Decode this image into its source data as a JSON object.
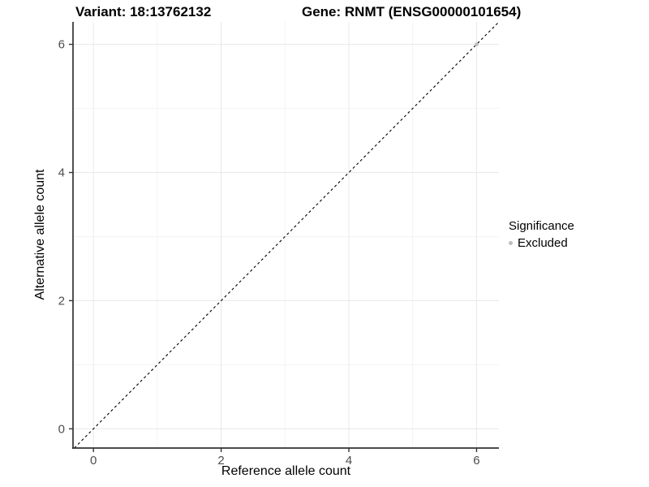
{
  "figure": {
    "titles": {
      "variant": "Variant: 18:13762132",
      "gene": "Gene: RNMT (ENSG00000101654)"
    }
  },
  "legend": {
    "title": "Significance",
    "items": [
      {
        "label": "Excluded",
        "marker_color": "#bebebe"
      }
    ]
  },
  "chart_data": {
    "type": "scatter",
    "title": "Variant: 18:13762132 — Gene: RNMT (ENSG00000101654)",
    "xlabel": "Reference allele count",
    "ylabel": "Alternative allele count",
    "xlim": [
      -0.32,
      6.35
    ],
    "ylim": [
      -0.3,
      6.35
    ],
    "xticks": [
      0,
      2,
      4,
      6
    ],
    "yticks": [
      0,
      2,
      4,
      6
    ],
    "x_minor_ticks": [
      1,
      3,
      5
    ],
    "y_minor_ticks": [
      1,
      3,
      5
    ],
    "grid": true,
    "legend_position": "right",
    "series": [
      {
        "name": "Excluded",
        "color": "#bebebe",
        "points": [
          [
            6,
            6
          ]
        ]
      }
    ],
    "reference_line": {
      "kind": "identity y=x",
      "style": "dashed",
      "color": "#000000"
    }
  },
  "colors": {
    "background": "#ffffff",
    "grid_major": "#e8e8e8",
    "grid_minor": "#f3f3f3",
    "axis_line": "#333333",
    "tick_mark": "#333333",
    "tick_label": "#4d4d4d",
    "point": "#bebebe"
  }
}
